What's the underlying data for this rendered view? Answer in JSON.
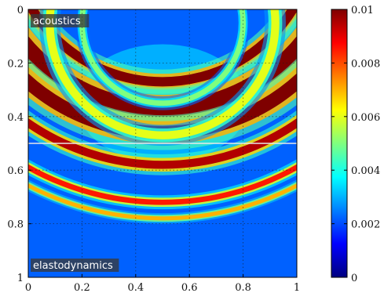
{
  "chart_data": {
    "type": "heatmap",
    "title": "",
    "xlabel": "",
    "ylabel": "",
    "xlim": [
      0,
      1
    ],
    "ylim": [
      0,
      1
    ],
    "y_axis_reversed": true,
    "x_ticks": [
      "0",
      "0.2",
      "0.4",
      "0.6",
      "0.8",
      "1"
    ],
    "x_tick_values": [
      0,
      0.2,
      0.4,
      0.6,
      0.8,
      1
    ],
    "y_ticks": [
      "0",
      "0.2",
      "0.4",
      "0.6",
      "0.8",
      "1"
    ],
    "y_tick_values": [
      0,
      0.2,
      0.4,
      0.6,
      0.8,
      1
    ],
    "grid": true,
    "interface_y": 0.5,
    "colormap": "jet",
    "colorbar": {
      "min": 0,
      "max": 0.01,
      "ticks": [
        "0",
        "0.002",
        "0.004",
        "0.006",
        "0.008",
        "0.01"
      ],
      "tick_values": [
        0,
        0.002,
        0.004,
        0.006,
        0.008,
        0.01
      ],
      "stops": [
        "#00007f",
        "#0000ff",
        "#007fff",
        "#00ffff",
        "#7fff7f",
        "#ffff00",
        "#ff7f00",
        "#ff0000",
        "#7f0000"
      ]
    },
    "annotations": [
      {
        "text": "acoustics",
        "x": 0.0,
        "y": 0.0
      },
      {
        "text": "elastodynamics",
        "x": 0.0,
        "y": 1.0
      }
    ],
    "wavefronts": [
      {
        "center_x": 0.5,
        "center_y": -0.3,
        "radius": 0.57,
        "width": 0.035,
        "value": 0.01
      },
      {
        "center_x": 0.5,
        "center_y": -0.3,
        "radius": 0.67,
        "width": 0.06,
        "value": 0.01
      },
      {
        "center_x": 0.5,
        "center_y": -0.3,
        "radius": 0.76,
        "width": 0.05,
        "value": 0.01
      },
      {
        "center_x": 0.5,
        "center_y": -0.3,
        "radius": 0.88,
        "width": 0.03,
        "value": 0.0095
      },
      {
        "center_x": 0.5,
        "center_y": -0.3,
        "radius": 1.02,
        "width": 0.02,
        "value": 0.0085
      },
      {
        "center_x": 0.5,
        "center_y": -0.3,
        "radius": 1.08,
        "width": 0.015,
        "value": 0.007
      },
      {
        "center_x": 0.5,
        "center_y": 0.05,
        "radius": 0.42,
        "width": 0.03,
        "value": 0.006
      },
      {
        "center_x": 0.5,
        "center_y": 0.05,
        "radius": 0.3,
        "width": 0.02,
        "value": 0.005
      }
    ],
    "background_value": 0.0022
  }
}
